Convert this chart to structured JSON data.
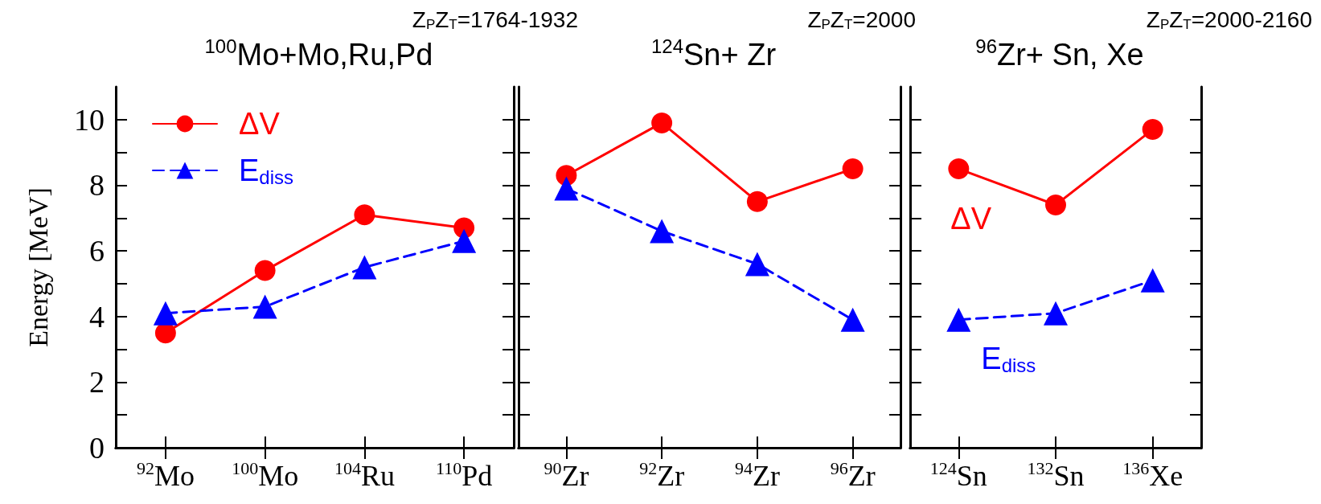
{
  "chart_data": [
    {
      "type": "line",
      "title": "$^{100}$Mo+Mo,Ru,Pd",
      "subtitle": "Z$_{P}$Z$_{T}$=1764-1932",
      "ylabel": "Energy [MeV]",
      "categories": [
        "$^{92}$Mo",
        "$^{100}$Mo",
        "$^{104}$Ru",
        "$^{110}$Pd"
      ],
      "ylim": [
        0,
        11
      ],
      "yticks": [
        0,
        {
          "value": 1,
          "label": null
        },
        2,
        {
          "value": 3,
          "label": null
        },
        4,
        {
          "value": 5,
          "label": null
        },
        6,
        {
          "value": 7,
          "label": null
        },
        8,
        {
          "value": 9,
          "label": null
        },
        10
      ],
      "legend": "top left",
      "series": [
        {
          "name": "ΔV",
          "color": "#ff0000",
          "marker": "circle",
          "line_style": "solid",
          "values": [
            3.5,
            5.4,
            7.1,
            6.7
          ]
        },
        {
          "name": "E$_{diss}$",
          "color": "#0000ff",
          "marker": "triangle",
          "line_style": "dashed",
          "values": [
            4.1,
            4.3,
            5.5,
            6.3
          ]
        }
      ]
    },
    {
      "type": "line",
      "subtitle": "Z$_{P}$Z$_{T}$=2000",
      "title": "$^{124}$Sn+ Zr",
      "categories": [
        "$^{90}$Zr",
        "$^{92}$Zr",
        "$^{94}$Zr",
        "$^{96}$Zr"
      ],
      "ylim": [
        0,
        11
      ],
      "yticks": [
        0,
        {
          "value": 1,
          "label": null
        },
        2,
        {
          "value": 3,
          "label": null
        },
        4,
        {
          "value": 5,
          "label": null
        },
        6,
        {
          "value": 7,
          "label": null
        },
        8,
        {
          "value": 9,
          "label": null
        },
        10
      ],
      "tick_labels": "x",
      "series": [
        {
          "color": "#ff0000",
          "marker": "circle",
          "line_style": "solid",
          "values": [
            8.3,
            9.9,
            7.5,
            8.5
          ]
        },
        {
          "color": "#0000ff",
          "marker": "triangle",
          "line_style": "dashed",
          "values": [
            7.9,
            6.6,
            5.6,
            3.9
          ]
        }
      ]
    },
    {
      "type": "line",
      "subtitle": "Z$_{P}$Z$_{T}$=2000-2160",
      "title": "$^{96}$Zr+ Sn, Xe",
      "categories": [
        "$^{124}$Sn",
        "$^{132}$Sn",
        "$^{136}$Xe"
      ],
      "ylim": [
        0,
        11
      ],
      "yticks": [
        0,
        {
          "value": 1,
          "label": null
        },
        2,
        {
          "value": 3,
          "label": null
        },
        4,
        {
          "value": 5,
          "label": null
        },
        6,
        {
          "value": 7,
          "label": null
        },
        8,
        {
          "value": 9,
          "label": null
        },
        10
      ],
      "tick_labels": "x",
      "annotations": [
        "ΔV",
        "E$_{diss}$"
      ],
      "series": [
        {
          "color": "#ff0000",
          "marker": "circle",
          "line_style": "solid",
          "values": [
            8.5,
            7.4,
            9.7
          ]
        },
        {
          "color": "#0000ff",
          "marker": "triangle",
          "line_style": "dashed",
          "values": [
            3.9,
            4.1,
            5.1
          ]
        }
      ]
    }
  ]
}
